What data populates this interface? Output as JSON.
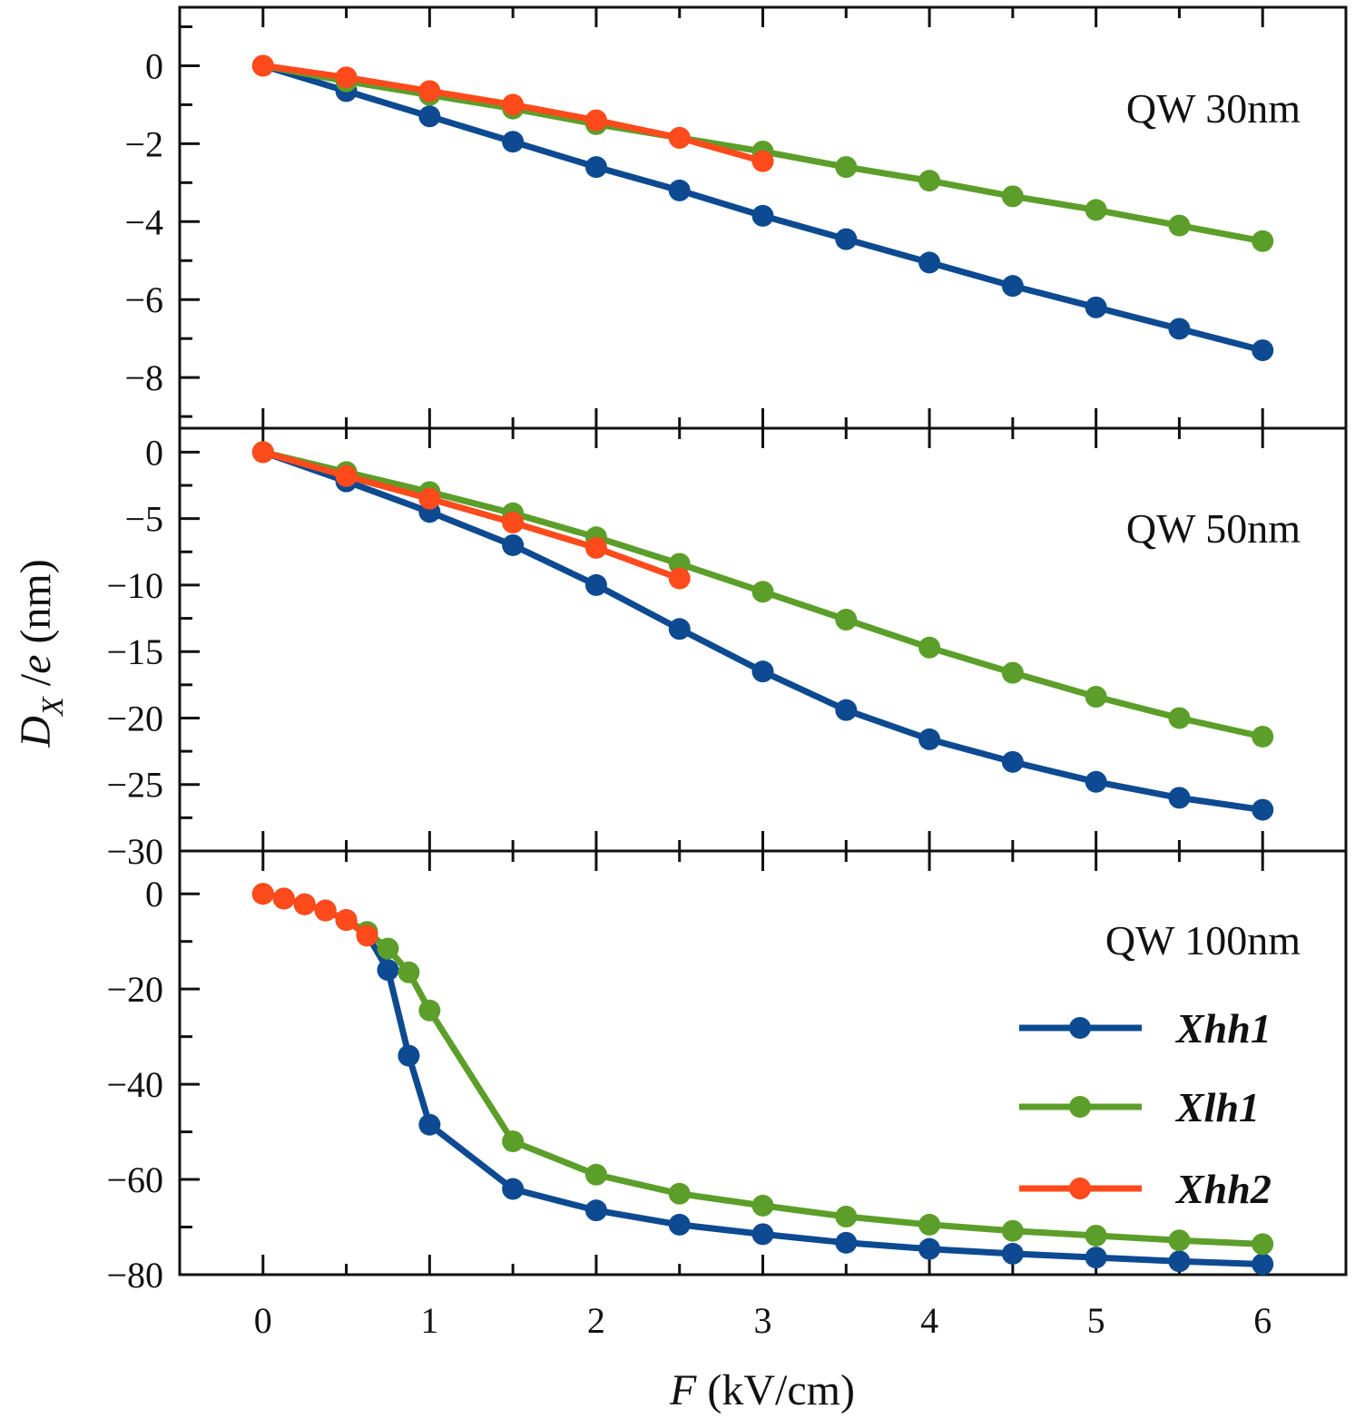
{
  "colors": {
    "Xhh1": "#0d4a91",
    "Xlh1": "#5c9e2a",
    "Xhh2": "#ff4a1c",
    "frame": "#111111"
  },
  "axes": {
    "xlabel_var": "F",
    "xlabel_unit": " (kV/cm)",
    "ylabel_var": "D",
    "ylabel_sub": "X",
    "ylabel_slash": " /",
    "ylabel_e": "e",
    "ylabel_unit": " (nm)"
  },
  "legend": {
    "placement": "bottom-panel right",
    "entries": [
      {
        "key": "Xhh1",
        "label": "Xhh1"
      },
      {
        "key": "Xlh1",
        "label": "Xlh1"
      },
      {
        "key": "Xhh2",
        "label": "Xhh2"
      }
    ]
  },
  "chart_data": [
    {
      "type": "line",
      "label": "QW 30nm",
      "xlim": [
        -0.5,
        6.5
      ],
      "ylim": [
        -9.3,
        1.5
      ],
      "yticks": [
        0,
        -2,
        -4,
        -6,
        -8
      ],
      "yticklabels": [
        "0",
        "−2",
        "−4",
        "−6",
        "−8"
      ],
      "series": [
        {
          "key": "Xhh1",
          "x": [
            0,
            0.5,
            1,
            1.5,
            2,
            2.5,
            3,
            3.5,
            4,
            4.5,
            5,
            5.5,
            6
          ],
          "y": [
            0,
            -0.65,
            -1.3,
            -1.95,
            -2.6,
            -3.2,
            -3.85,
            -4.45,
            -5.05,
            -5.65,
            -6.2,
            -6.75,
            -7.3
          ]
        },
        {
          "key": "Xlh1",
          "x": [
            0,
            0.5,
            1,
            1.5,
            2,
            2.5,
            3,
            3.5,
            4,
            4.5,
            5,
            5.5,
            6
          ],
          "y": [
            0,
            -0.4,
            -0.75,
            -1.1,
            -1.5,
            -1.85,
            -2.2,
            -2.6,
            -2.95,
            -3.35,
            -3.7,
            -4.1,
            -4.5
          ]
        },
        {
          "key": "Xhh2",
          "x": [
            0,
            0.5,
            1,
            1.5,
            2,
            2.5,
            3
          ],
          "y": [
            0,
            -0.3,
            -0.65,
            -1.0,
            -1.4,
            -1.85,
            -2.45
          ]
        }
      ]
    },
    {
      "type": "line",
      "label": "QW 50nm",
      "xlim": [
        -0.5,
        6.5
      ],
      "ylim": [
        -30,
        1.8
      ],
      "yticks": [
        0,
        -5,
        -10,
        -15,
        -20,
        -25,
        -30
      ],
      "yticklabels": [
        "0",
        "−5",
        "−10",
        "−15",
        "−20",
        "−25",
        "−30"
      ],
      "series": [
        {
          "key": "Xhh1",
          "x": [
            0,
            0.5,
            1,
            1.5,
            2,
            2.5,
            3,
            3.5,
            4,
            4.5,
            5,
            5.5,
            6
          ],
          "y": [
            0,
            -2.2,
            -4.5,
            -7.0,
            -10.0,
            -13.3,
            -16.5,
            -19.4,
            -21.6,
            -23.3,
            -24.8,
            -26.0,
            -26.9
          ]
        },
        {
          "key": "Xlh1",
          "x": [
            0,
            0.5,
            1,
            1.5,
            2,
            2.5,
            3,
            3.5,
            4,
            4.5,
            5,
            5.5,
            6
          ],
          "y": [
            0,
            -1.5,
            -3.0,
            -4.6,
            -6.4,
            -8.4,
            -10.5,
            -12.6,
            -14.7,
            -16.6,
            -18.4,
            -20.0,
            -21.4
          ]
        },
        {
          "key": "Xhh2",
          "x": [
            0,
            0.5,
            1,
            1.5,
            2,
            2.5
          ],
          "y": [
            0,
            -1.8,
            -3.5,
            -5.3,
            -7.2,
            -9.5
          ]
        }
      ]
    },
    {
      "type": "line",
      "label": "QW 100nm",
      "xlim": [
        -0.5,
        6.5
      ],
      "ylim": [
        -80,
        9
      ],
      "yticks": [
        0,
        -20,
        -40,
        -60,
        -80
      ],
      "yticklabels": [
        "0",
        "−20",
        "−40",
        "−60",
        "−80"
      ],
      "series": [
        {
          "key": "Xhh1",
          "x": [
            0,
            0.125,
            0.25,
            0.375,
            0.5,
            0.625,
            0.75,
            0.875,
            1,
            1.5,
            2,
            2.5,
            3,
            3.5,
            4,
            4.5,
            5,
            5.5,
            6
          ],
          "y": [
            0,
            -1,
            -2.2,
            -3.5,
            -5.5,
            -8.5,
            -16,
            -34,
            -48.5,
            -62,
            -66.5,
            -69.5,
            -71.5,
            -73.3,
            -74.6,
            -75.6,
            -76.4,
            -77.2,
            -77.8
          ]
        },
        {
          "key": "Xlh1",
          "x": [
            0,
            0.125,
            0.25,
            0.375,
            0.5,
            0.625,
            0.75,
            0.875,
            1,
            1.5,
            2,
            2.5,
            3,
            3.5,
            4,
            4.5,
            5,
            5.5,
            6
          ],
          "y": [
            0,
            -1,
            -2.2,
            -3.5,
            -5.5,
            -8,
            -11.5,
            -16.5,
            -24.5,
            -52,
            -59,
            -63,
            -65.5,
            -67.8,
            -69.5,
            -70.8,
            -71.8,
            -72.8,
            -73.6
          ]
        },
        {
          "key": "Xhh2",
          "x": [
            0,
            0.125,
            0.25,
            0.375,
            0.5,
            0.625
          ],
          "y": [
            0,
            -1,
            -2.2,
            -3.5,
            -5.5,
            -8.8
          ]
        }
      ]
    }
  ],
  "xticks": [
    0,
    1,
    2,
    3,
    4,
    5,
    6
  ],
  "xticklabels": [
    "0",
    "1",
    "2",
    "3",
    "4",
    "5",
    "6"
  ]
}
